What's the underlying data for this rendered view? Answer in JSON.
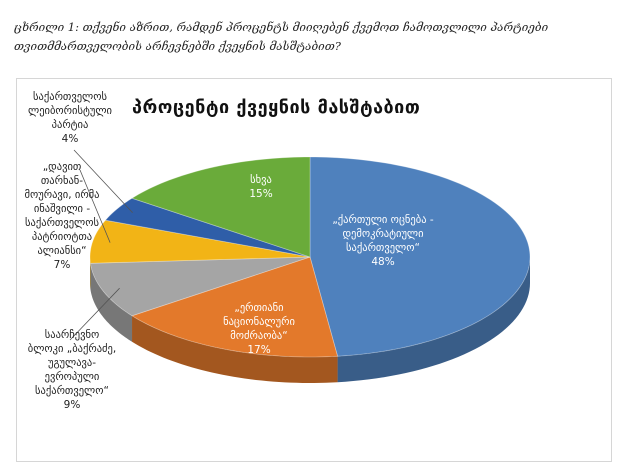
{
  "caption": "ცხრილი 1: თქვენი აზრით, რამდენ პროცენტს მიიღებენ ქვემოთ ჩამოთვლილი პარტიები თვითმმართველობის არჩევნებში ქვეყნის მასშტაბით?",
  "chart_data": {
    "type": "pie",
    "title": "პროცენტი ქვეყნის მასშტაბით",
    "three_d": true,
    "start_angle_note": "clockwise from 12 o'clock",
    "slices": [
      {
        "label": "„ქართული ოცნება - დემოკრატიული საქართველო“",
        "value": 48,
        "value_label": "48%",
        "color": "#4f81bd"
      },
      {
        "label": "„ერთიანი ნაციონალური მოძრაობა“",
        "value": 17,
        "value_label": "17%",
        "color": "#e3792b"
      },
      {
        "label": "საარჩევნო ბლოკი „ბაქრაძე, უგულავა-ევროპული საქართველო“",
        "value": 9,
        "value_label": "9%",
        "color": "#a5a5a5"
      },
      {
        "label": "„დავით თარხან-მოურავი, ირმა ინაშვილი - საქართველოს პატრიოტთა ალიანსი“",
        "value": 7,
        "value_label": "7%",
        "color": "#f2b416"
      },
      {
        "label": "საქართველოს ლეიბორისტული პარტია",
        "value": 4,
        "value_label": "4%",
        "color": "#2f5ea8"
      },
      {
        "label": "სხვა",
        "value": 15,
        "value_label": "15%",
        "color": "#6aab3a"
      }
    ]
  },
  "labels": {
    "l0a": "„ქართული ოცნება -",
    "l0b": "დემოკრატიული",
    "l0c": "საქართველო“",
    "l0d": "48%",
    "l1a": "„ერთიანი",
    "l1b": "ნაციონალური",
    "l1c": "მოძრაობა“",
    "l1d": "17%",
    "l5a": "სხვა",
    "l5b": "15%",
    "l2a": "საარჩევნო",
    "l2b": "ბლოკი „ბაქრაძე,",
    "l2c": "უგულავა-",
    "l2d": "ევროპული",
    "l2e": "საქართველო“",
    "l2f": "9%",
    "l3a": "„დავით",
    "l3b": "თარხან-",
    "l3c": "მოურავი, ირმა",
    "l3d": "ინაშვილი -",
    "l3e": "საქართველოს",
    "l3f": "პატრიოტთა",
    "l3g": "ალიანსი“",
    "l3h": "7%",
    "l4a": "საქართველოს",
    "l4b": "ლეიბორისტული",
    "l4c": "პარტია",
    "l4d": "4%"
  }
}
